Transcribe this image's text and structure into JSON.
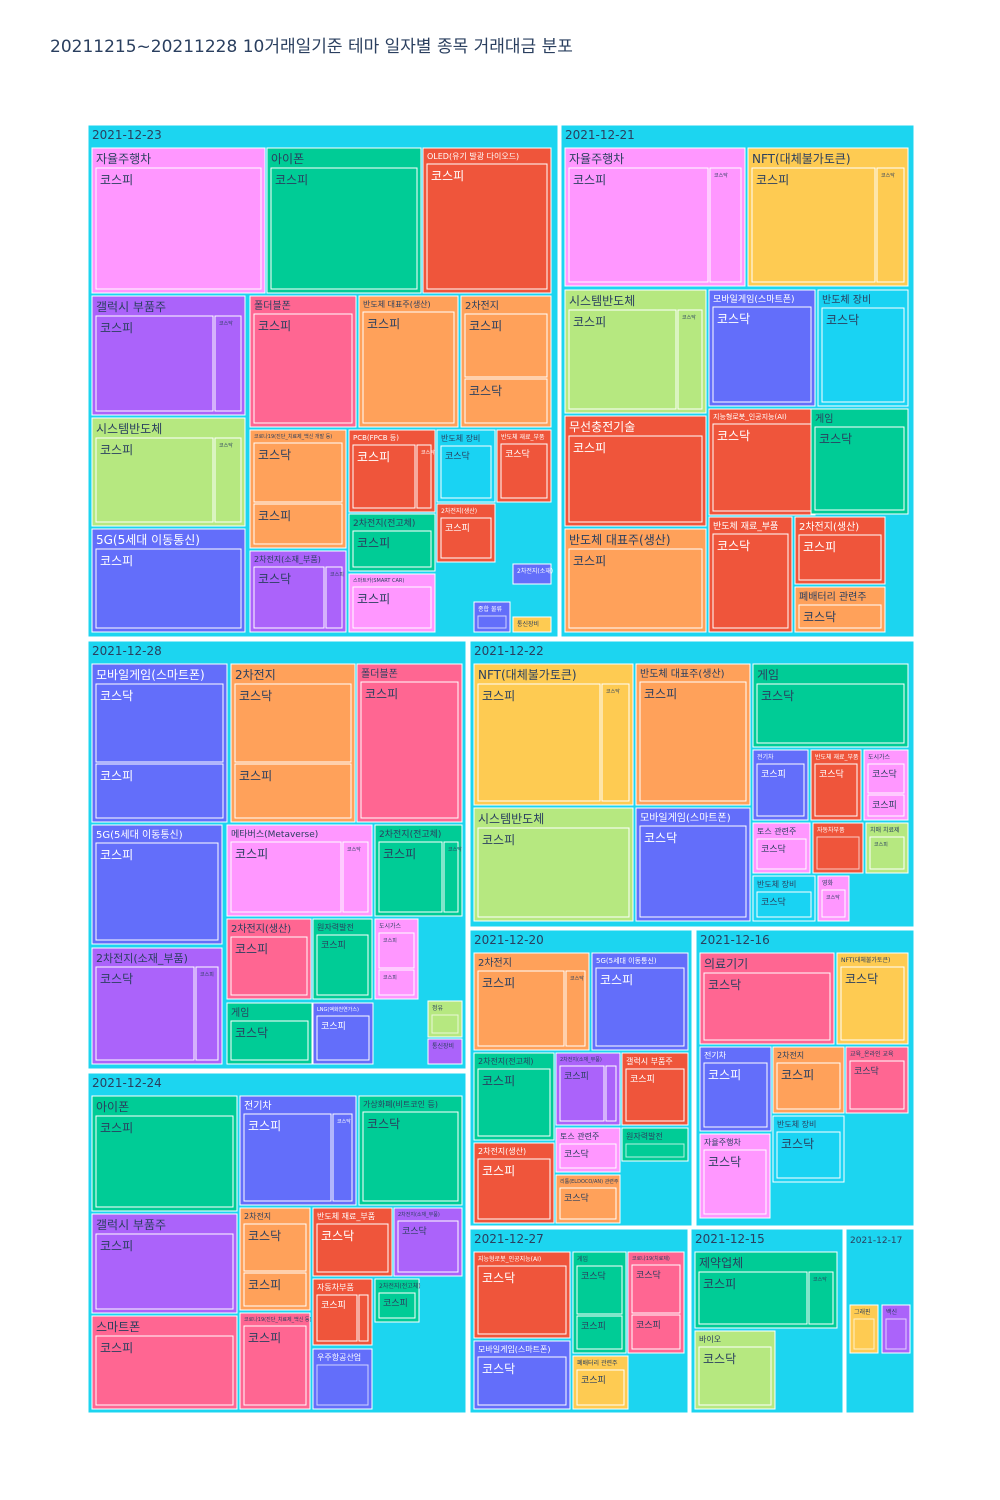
{
  "chart_data": {
    "type": "treemap",
    "title": "20211215~20211228 10거래일기준 테마 일자별 종목 거래대금 분포",
    "colors": {
      "date_box": "#1CD5F0",
      "border": "#ffffff",
      "label_dark": "#2a3f5f",
      "label_light": "#ffffff"
    },
    "palette": {
      "pink": "#FF97FF",
      "green": "#00CC96",
      "red": "#EF553B",
      "purple": "#AB63FA",
      "rose": "#FF6692",
      "orange": "#FFA15A",
      "lime": "#B6E880",
      "blue": "#636EFA",
      "cyan": "#19D3F3",
      "yellow": "#FECB52"
    },
    "dates": [
      {
        "label": "2021-12-23",
        "themes": [
          {
            "name": "자율주행차",
            "color": "pink",
            "markets": [
              "코스피"
            ]
          },
          {
            "name": "아이폰",
            "color": "green",
            "markets": [
              "코스피"
            ]
          },
          {
            "name": "OLED(유기 발광 다이오드)",
            "color": "red",
            "markets": [
              "코스피"
            ]
          },
          {
            "name": "갤럭시 부품주",
            "color": "purple",
            "markets": [
              "코스피",
              "코스닥"
            ]
          },
          {
            "name": "폴더블폰",
            "color": "rose",
            "markets": [
              "코스피"
            ]
          },
          {
            "name": "반도체 대표주(생산)",
            "color": "orange",
            "markets": [
              "코스피"
            ]
          },
          {
            "name": "2차전지",
            "color": "orange",
            "markets": [
              "코스피",
              "코스닥"
            ]
          },
          {
            "name": "시스템반도체",
            "color": "lime",
            "markets": [
              "코스피",
              "코스닥"
            ]
          },
          {
            "name": "코로나19(진단_치료제_백신 개발 등)",
            "color": "orange",
            "markets": [
              "코스닥",
              "코스피"
            ]
          },
          {
            "name": "PCB(FPCB 등)",
            "color": "red",
            "markets": [
              "코스피",
              "코스닥"
            ]
          },
          {
            "name": "반도체 장비",
            "color": "cyan",
            "markets": [
              "코스닥"
            ]
          },
          {
            "name": "반도체 재료_부품",
            "color": "red",
            "markets": [
              "코스닥"
            ]
          },
          {
            "name": "5G(5세대 이동통신)",
            "color": "blue",
            "markets": [
              "코스피"
            ]
          },
          {
            "name": "2차전지(전고체)",
            "color": "green",
            "markets": [
              "코스피"
            ]
          },
          {
            "name": "2차전지(생산)",
            "color": "red",
            "markets": [
              "코스피"
            ]
          },
          {
            "name": "2차전지(소재_부품)",
            "color": "purple",
            "markets": [
              "코스닥",
              "코스피"
            ]
          },
          {
            "name": "스마트카(SMART CAR)",
            "color": "pink",
            "markets": [
              "코스피"
            ]
          },
          {
            "name": "종합 물류",
            "color": "blue",
            "markets": []
          },
          {
            "name": "2차전지(소재)",
            "color": "blue",
            "markets": []
          },
          {
            "name": "통신장비",
            "color": "yellow",
            "markets": []
          }
        ]
      },
      {
        "label": "2021-12-21",
        "themes": [
          {
            "name": "자율주행차",
            "color": "pink",
            "markets": [
              "코스피",
              "코스닥"
            ]
          },
          {
            "name": "NFT(대체불가토큰)",
            "color": "yellow",
            "markets": [
              "코스피",
              "코스닥"
            ]
          },
          {
            "name": "시스템반도체",
            "color": "lime",
            "markets": [
              "코스피",
              "코스닥"
            ]
          },
          {
            "name": "모바일게임(스마트폰)",
            "color": "blue",
            "markets": [
              "코스닥"
            ]
          },
          {
            "name": "반도체 장비",
            "color": "cyan",
            "markets": [
              "코스닥"
            ]
          },
          {
            "name": "무선충전기술",
            "color": "red",
            "markets": [
              "코스피"
            ]
          },
          {
            "name": "지능형로봇_인공지능(AI)",
            "color": "red",
            "markets": [
              "코스닥"
            ]
          },
          {
            "name": "게임",
            "color": "green",
            "markets": [
              "코스닥"
            ]
          },
          {
            "name": "반도체 대표주(생산)",
            "color": "orange",
            "markets": [
              "코스피"
            ]
          },
          {
            "name": "반도체 재료_부품",
            "color": "red",
            "markets": [
              "코스닥"
            ]
          },
          {
            "name": "2차전지(생산)",
            "color": "red",
            "markets": [
              "코스피"
            ]
          },
          {
            "name": "폐배터리 관련주",
            "color": "orange",
            "markets": [
              "코스닥"
            ]
          }
        ]
      },
      {
        "label": "2021-12-28",
        "themes": [
          {
            "name": "모바일게임(스마트폰)",
            "color": "blue",
            "markets": [
              "코스닥",
              "코스피"
            ]
          },
          {
            "name": "2차전지",
            "color": "orange",
            "markets": [
              "코스닥",
              "코스피"
            ]
          },
          {
            "name": "폴더블폰",
            "color": "rose",
            "markets": [
              "코스피"
            ]
          },
          {
            "name": "5G(5세대 이동통신)",
            "color": "blue",
            "markets": [
              "코스피"
            ]
          },
          {
            "name": "메타버스(Metaverse)",
            "color": "pink",
            "markets": [
              "코스피",
              "코스닥"
            ]
          },
          {
            "name": "2차전지(전고체)",
            "color": "green",
            "markets": [
              "코스피",
              "코스닥"
            ]
          },
          {
            "name": "2차전지(소재_부품)",
            "color": "purple",
            "markets": [
              "코스닥",
              "코스피"
            ]
          },
          {
            "name": "2차전지(생산)",
            "color": "rose",
            "markets": [
              "코스피"
            ]
          },
          {
            "name": "원자력발전",
            "color": "green",
            "markets": [
              "코스피"
            ]
          },
          {
            "name": "도시가스",
            "color": "pink",
            "markets": [
              "코스피",
              "코스피"
            ]
          },
          {
            "name": "게임",
            "color": "green",
            "markets": [
              "코스닥"
            ]
          },
          {
            "name": "LNG(액화천연가스)",
            "color": "blue",
            "markets": [
              "코스피"
            ]
          },
          {
            "name": "정유",
            "color": "lime",
            "markets": []
          },
          {
            "name": "통신장비",
            "color": "purple",
            "markets": []
          }
        ]
      },
      {
        "label": "2021-12-22",
        "themes": [
          {
            "name": "NFT(대체불가토큰)",
            "color": "yellow",
            "markets": [
              "코스피",
              "코스닥"
            ]
          },
          {
            "name": "반도체 대표주(생산)",
            "color": "orange",
            "markets": [
              "코스피"
            ]
          },
          {
            "name": "게임",
            "color": "green",
            "markets": [
              "코스닥"
            ]
          },
          {
            "name": "시스템반도체",
            "color": "lime",
            "markets": [
              "코스피"
            ]
          },
          {
            "name": "모바일게임(스마트폰)",
            "color": "blue",
            "markets": [
              "코스닥"
            ]
          },
          {
            "name": "전기차",
            "color": "blue",
            "markets": [
              "코스피"
            ]
          },
          {
            "name": "반도체 재료_부품",
            "color": "red",
            "markets": [
              "코스닥"
            ]
          },
          {
            "name": "도시가스",
            "color": "pink",
            "markets": [
              "코스닥",
              "코스피"
            ]
          },
          {
            "name": "토스 관련주",
            "color": "pink",
            "markets": [
              "코스닥"
            ]
          },
          {
            "name": "자동차부품",
            "color": "red",
            "markets": []
          },
          {
            "name": "치매 치료제",
            "color": "lime",
            "markets": [
              "코스피"
            ]
          },
          {
            "name": "반도체 장비",
            "color": "cyan",
            "markets": [
              "코스닥"
            ]
          },
          {
            "name": "영화",
            "color": "pink",
            "markets": [
              "코스닥"
            ]
          }
        ]
      },
      {
        "label": "2021-12-20",
        "themes": [
          {
            "name": "2차전지",
            "color": "orange",
            "markets": [
              "코스피",
              "코스닥"
            ]
          },
          {
            "name": "5G(5세대 이동통신)",
            "color": "blue",
            "markets": [
              "코스피"
            ]
          },
          {
            "name": "2차전지(전고체)",
            "color": "green",
            "markets": [
              "코스피"
            ]
          },
          {
            "name": "2차전지(소재_부품)",
            "color": "purple",
            "markets": [
              "코스피",
              "코스닥"
            ]
          },
          {
            "name": "갤럭시 부품주",
            "color": "red",
            "markets": [
              "코스피"
            ]
          },
          {
            "name": "토스 관련주",
            "color": "pink",
            "markets": [
              "코스닥"
            ]
          },
          {
            "name": "원자력발전",
            "color": "green",
            "markets": []
          },
          {
            "name": "2차전지(생산)",
            "color": "red",
            "markets": [
              "코스피"
            ]
          },
          {
            "name": "리튬(ELDOCO/AN) 관련주",
            "color": "orange",
            "markets": [
              "코스닥"
            ]
          }
        ]
      },
      {
        "label": "2021-12-16",
        "themes": [
          {
            "name": "의료기기",
            "color": "rose",
            "markets": [
              "코스닥"
            ]
          },
          {
            "name": "NFT(대체불가토큰)",
            "color": "yellow",
            "markets": [
              "코스닥"
            ]
          },
          {
            "name": "전기차",
            "color": "blue",
            "markets": [
              "코스피"
            ]
          },
          {
            "name": "2차전지",
            "color": "orange",
            "markets": [
              "코스피"
            ]
          },
          {
            "name": "교육_온라인 교육",
            "color": "rose",
            "markets": [
              "코스닥"
            ]
          },
          {
            "name": "자율주행차",
            "color": "pink",
            "markets": [
              "코스닥"
            ]
          },
          {
            "name": "반도체 장비",
            "color": "cyan",
            "markets": [
              "코스닥"
            ]
          }
        ]
      },
      {
        "label": "2021-12-24",
        "themes": [
          {
            "name": "아이폰",
            "color": "green",
            "markets": [
              "코스피"
            ]
          },
          {
            "name": "전기차",
            "color": "blue",
            "markets": [
              "코스피",
              "코스닥"
            ]
          },
          {
            "name": "가상화폐(비트코인 등)",
            "color": "green",
            "markets": [
              "코스닥"
            ]
          },
          {
            "name": "갤럭시 부품주",
            "color": "purple",
            "markets": [
              "코스피"
            ]
          },
          {
            "name": "2차전지",
            "color": "orange",
            "markets": [
              "코스닥",
              "코스피"
            ]
          },
          {
            "name": "반도체 재료_부품",
            "color": "red",
            "markets": [
              "코스닥"
            ]
          },
          {
            "name": "2차전지(소재_부품)",
            "color": "purple",
            "markets": [
              "코스닥"
            ]
          },
          {
            "name": "스마트폰",
            "color": "rose",
            "markets": [
              "코스피"
            ]
          },
          {
            "name": "코로나19(진단_치료제_백신 등)",
            "color": "rose",
            "markets": [
              "코스피"
            ]
          },
          {
            "name": "자동차부품",
            "color": "red",
            "markets": [
              "코스피",
              "코스닥"
            ]
          },
          {
            "name": "2차전지(전고체)",
            "color": "green",
            "markets": [
              "코스피"
            ]
          },
          {
            "name": "우주항공산업",
            "color": "blue",
            "markets": []
          }
        ]
      },
      {
        "label": "2021-12-27",
        "themes": [
          {
            "name": "지능형로봇_인공지능(AI)",
            "color": "red",
            "markets": [
              "코스닥"
            ]
          },
          {
            "name": "게임",
            "color": "green",
            "markets": [
              "코스닥",
              "코스피"
            ]
          },
          {
            "name": "코로나19(치료제)",
            "color": "rose",
            "markets": [
              "코스닥",
              "코스피"
            ]
          },
          {
            "name": "모바일게임(스마트폰)",
            "color": "blue",
            "markets": [
              "코스닥"
            ]
          },
          {
            "name": "폐배터리 관련주",
            "color": "yellow",
            "markets": [
              "코스피"
            ]
          }
        ]
      },
      {
        "label": "2021-12-15",
        "themes": [
          {
            "name": "제약업체",
            "color": "green",
            "markets": [
              "코스피",
              "코스닥"
            ]
          },
          {
            "name": "바이오",
            "color": "lime",
            "markets": [
              "코스닥"
            ]
          }
        ]
      },
      {
        "label": "2021-12-17",
        "themes": [
          {
            "name": "그래핀",
            "color": "yellow",
            "markets": []
          },
          {
            "name": "백신",
            "color": "purple",
            "markets": []
          }
        ]
      }
    ]
  }
}
